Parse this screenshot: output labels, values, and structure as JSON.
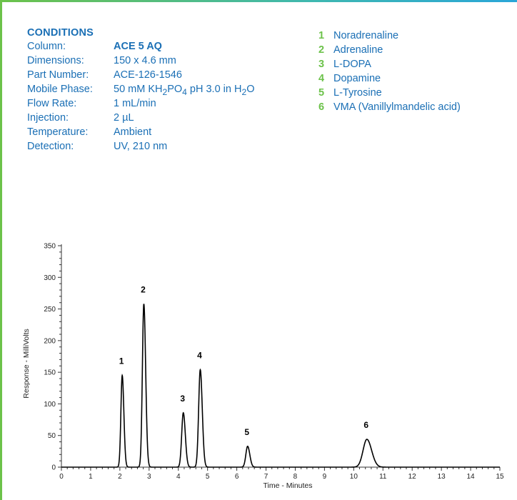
{
  "conditions": {
    "title": "CONDITIONS",
    "rows": [
      {
        "label": "Column:",
        "value": "ACE 5 AQ"
      },
      {
        "label": "Dimensions:",
        "value": "150 x 4.6 mm"
      },
      {
        "label": "Part Number:",
        "value": "ACE-126-1546"
      },
      {
        "label": "Mobile Phase:",
        "value_parts": [
          "50 mM KH",
          "2",
          "PO",
          "4",
          " pH 3.0 in H",
          "2",
          "O"
        ]
      },
      {
        "label": "Flow Rate:",
        "value": "1 mL/min"
      },
      {
        "label": "Injection:",
        "value": "2 µL"
      },
      {
        "label": "Temperature:",
        "value": "Ambient"
      },
      {
        "label": "Detection:",
        "value": "UV, 210 nm"
      }
    ]
  },
  "analytes": [
    {
      "num": "1",
      "name": "Noradrenaline"
    },
    {
      "num": "2",
      "name": "Adrenaline"
    },
    {
      "num": "3",
      "name": "L-DOPA"
    },
    {
      "num": "4",
      "name": "Dopamine"
    },
    {
      "num": "5",
      "name": "L-Tyrosine"
    },
    {
      "num": "6",
      "name": "VMA (Vanillylmandelic acid)"
    }
  ],
  "colors": {
    "brand_green": "#6cc24a",
    "brand_blue": "#1a6fb5",
    "trace": "#000000"
  },
  "chart_data": {
    "type": "line",
    "title": "",
    "xlabel": "Time - Minutes",
    "ylabel": "Response - MilliVolts",
    "xlim": [
      0,
      15
    ],
    "ylim": [
      0,
      350
    ],
    "x_ticks": [
      0,
      1,
      2,
      3,
      4,
      5,
      6,
      7,
      8,
      9,
      10,
      11,
      12,
      13,
      14,
      15
    ],
    "y_ticks": [
      0,
      50,
      100,
      150,
      200,
      250,
      300,
      350
    ],
    "grid": false,
    "peaks": [
      {
        "label": "1",
        "time": 2.08,
        "height": 145
      },
      {
        "label": "2",
        "time": 2.82,
        "height": 258
      },
      {
        "label": "3",
        "time": 4.17,
        "height": 86
      },
      {
        "label": "4",
        "time": 4.75,
        "height": 154
      },
      {
        "label": "5",
        "time": 6.37,
        "height": 33
      },
      {
        "label": "6",
        "time": 10.45,
        "height": 44
      }
    ]
  }
}
